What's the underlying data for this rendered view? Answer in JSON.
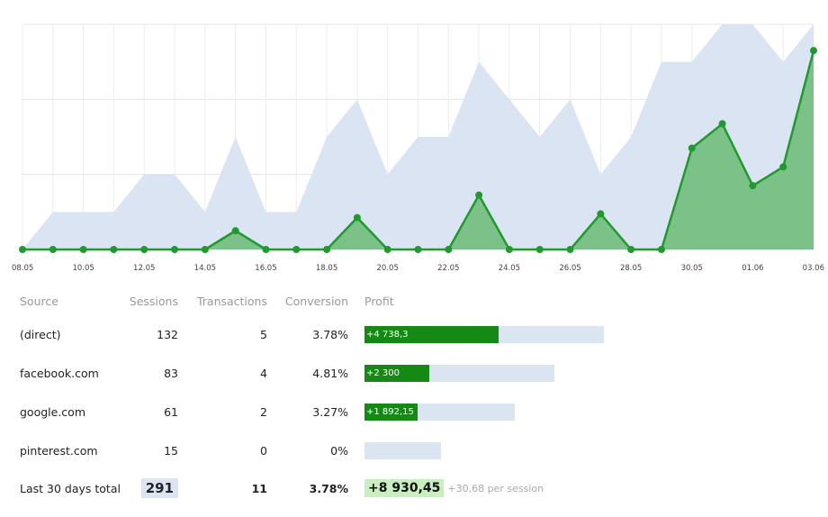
{
  "chart_data": {
    "type": "area",
    "x": [
      "08.05",
      "09.05",
      "10.05",
      "11.05",
      "12.05",
      "13.05",
      "14.05",
      "15.05",
      "16.05",
      "17.05",
      "18.05",
      "19.05",
      "20.05",
      "21.05",
      "22.05",
      "23.05",
      "24.05",
      "25.05",
      "26.05",
      "27.05",
      "28.05",
      "29.05",
      "30.05",
      "31.05",
      "01.06",
      "02.06",
      "03.06"
    ],
    "tick_labels": [
      "08.05",
      "10.05",
      "12.05",
      "14.05",
      "16.05",
      "18.05",
      "20.05",
      "22.05",
      "24.05",
      "26.05",
      "28.05",
      "30.05",
      "01.06",
      "03.06"
    ],
    "series": [
      {
        "values": [
          0,
          1,
          1,
          1,
          2,
          2,
          1,
          3,
          1,
          1,
          3,
          4,
          2,
          3,
          3,
          5,
          4,
          3,
          4,
          2,
          3,
          5,
          5,
          6,
          6,
          5,
          6
        ],
        "color": "#dae4f2"
      },
      {
        "values": [
          0,
          0,
          0,
          0,
          0,
          0,
          0,
          0.5,
          0,
          0,
          0,
          0.85,
          0,
          0,
          0,
          1.45,
          0,
          0,
          0,
          0.95,
          0,
          0,
          2.7,
          3.35,
          1.7,
          2.2,
          5.3
        ],
        "color": "#1e9b2c"
      }
    ],
    "ylim": [
      0,
      6
    ],
    "grid": true
  },
  "table": {
    "headers": {
      "source": "Source",
      "sessions": "Sessions",
      "transactions": "Transactions",
      "conversion": "Conversion",
      "profit": "Profit"
    },
    "rows": [
      {
        "source": "(direct)",
        "sessions": "132",
        "transactions": "5",
        "conversion": "3.78%",
        "profit": "+4 738,3",
        "profit_fraction": 0.559,
        "sessions_fraction": 1.0
      },
      {
        "source": "facebook.com",
        "sessions": "83",
        "transactions": "4",
        "conversion": "4.81%",
        "profit": "+2 300",
        "profit_fraction": 0.271,
        "sessions_fraction": 0.795
      },
      {
        "source": "google.com",
        "sessions": "61",
        "transactions": "2",
        "conversion": "3.27%",
        "profit": "+1 892,15",
        "profit_fraction": 0.223,
        "sessions_fraction": 0.627
      },
      {
        "source": "pinterest.com",
        "sessions": "15",
        "transactions": "0",
        "conversion": "0%",
        "profit": "",
        "profit_fraction": 0,
        "sessions_fraction": 0.32
      }
    ],
    "total": {
      "label": "Last 30 days total",
      "sessions": "291",
      "transactions": "11",
      "conversion": "3.78%",
      "profit": "+8 930,45",
      "per_session": "+30,68 per session"
    }
  },
  "colors": {
    "area_background": "#dae4f2",
    "area_green": "#7cc188",
    "line_green": "#1e9b2c",
    "profit_bar": "#148a14"
  }
}
